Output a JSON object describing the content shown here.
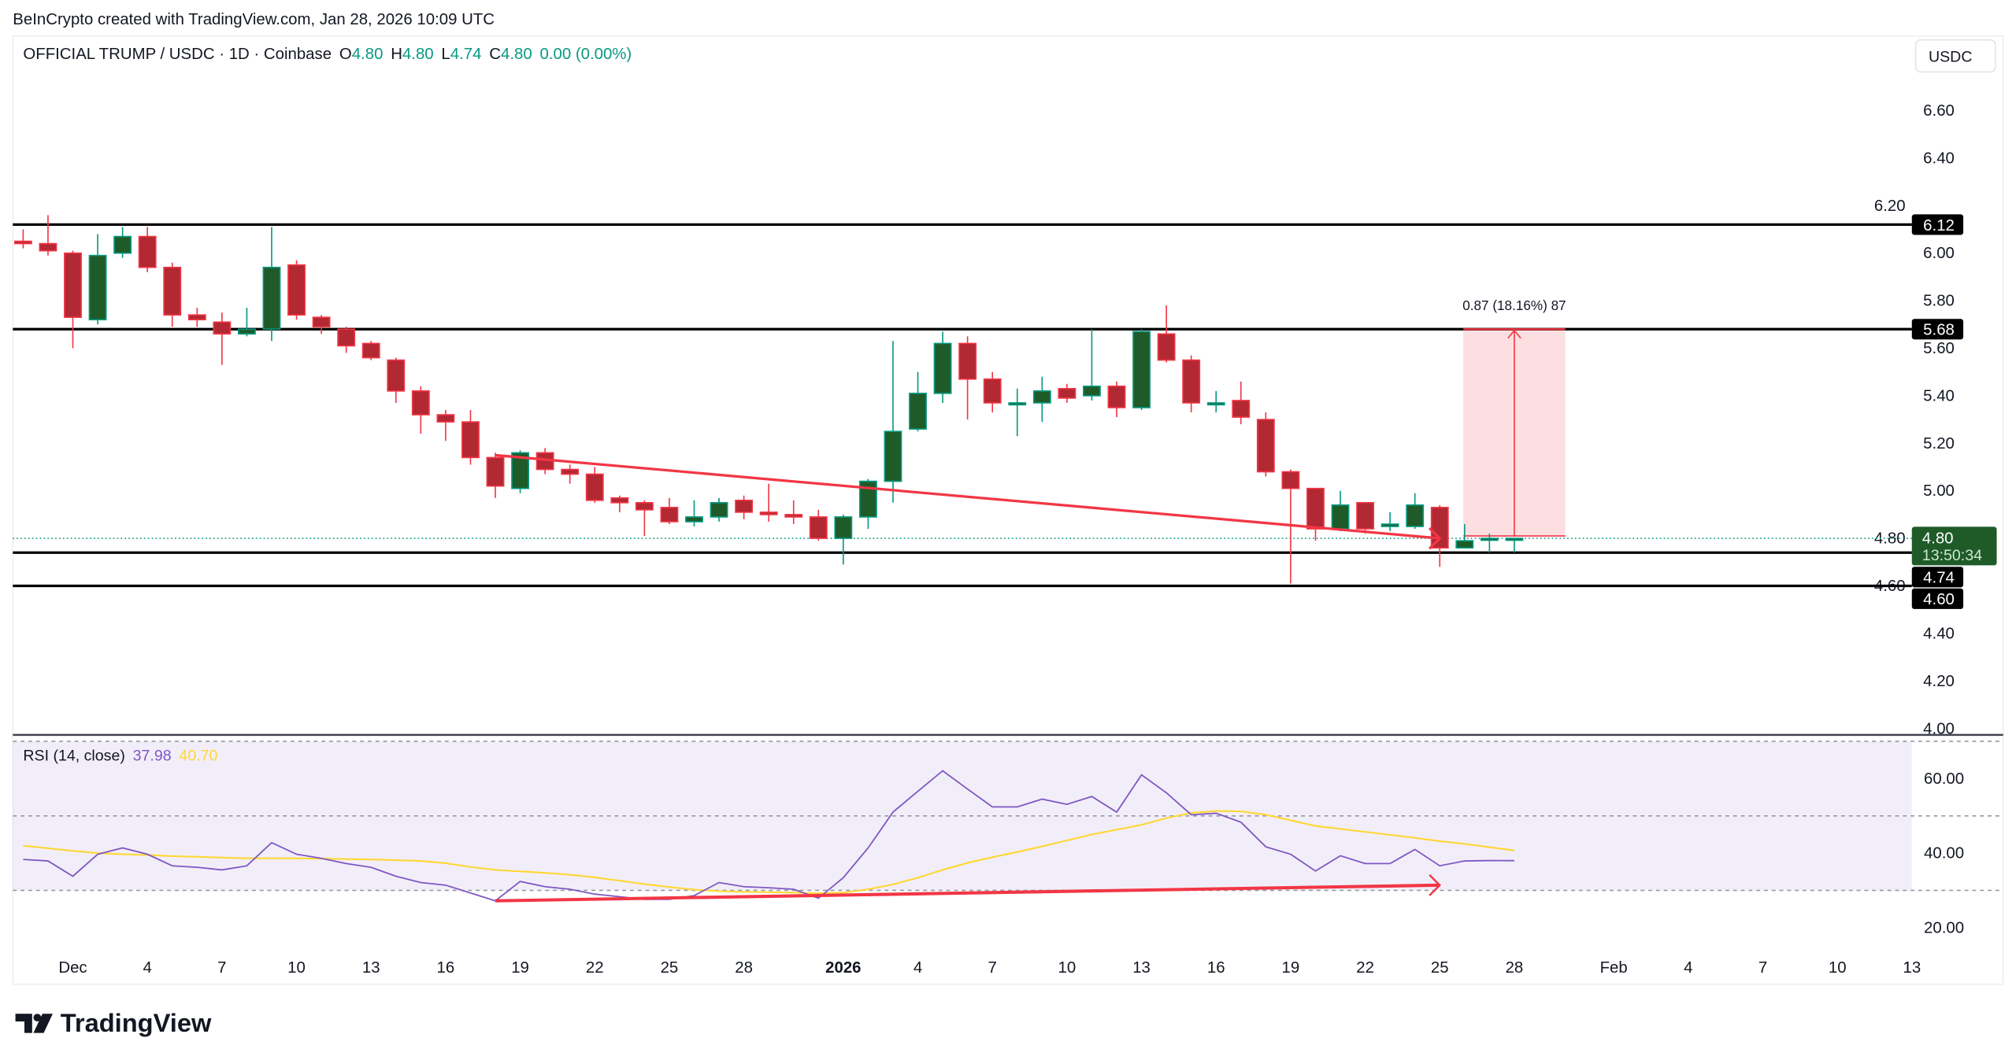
{
  "header": {
    "credit": "BeInCrypto created with TradingView.com, Jan 28, 2026 10:09 UTC",
    "symbol": "OFFICIAL TRUMP / USDC · 1D · Coinbase",
    "o_label": "O",
    "o_value": "4.80",
    "h_label": "H",
    "h_value": "4.80",
    "l_label": "L",
    "l_value": "4.74",
    "c_label": "C",
    "c_value": "4.80",
    "change": "0.00 (0.00%)",
    "currency_button": "USDC"
  },
  "colors": {
    "up": "#089981",
    "up_body": "#1e5b28",
    "down": "#f23645",
    "down_body": "#b22833",
    "rsi": "#7e57c2",
    "rsi_ma": "#fdd835",
    "accent_line": "#f23645"
  },
  "chart_data": {
    "type": "candlestick",
    "title": "OFFICIAL TRUMP / USDC · 1D · Coinbase",
    "start_date": "Nov 29, 2025",
    "ylim": [
      4.0,
      6.7
    ],
    "y_ticks": [
      "6.60",
      "6.40",
      "6.20",
      "6.00",
      "5.80",
      "5.60",
      "5.40",
      "5.20",
      "5.00",
      "4.80",
      "4.60",
      "4.40",
      "4.20",
      "4.00"
    ],
    "y_tick_values": [
      6.6,
      6.4,
      6.2,
      6.0,
      5.8,
      5.6,
      5.4,
      5.2,
      5.0,
      4.8,
      4.6,
      4.4,
      4.2,
      4.0
    ],
    "candles_ohlc": [
      [
        6.05,
        6.1,
        6.02,
        6.04
      ],
      [
        6.04,
        6.16,
        5.99,
        6.01
      ],
      [
        6.0,
        6.01,
        5.6,
        5.73
      ],
      [
        5.72,
        6.08,
        5.7,
        5.99
      ],
      [
        6.0,
        6.11,
        5.98,
        6.07
      ],
      [
        6.07,
        6.11,
        5.92,
        5.94
      ],
      [
        5.94,
        5.96,
        5.69,
        5.74
      ],
      [
        5.74,
        5.77,
        5.69,
        5.72
      ],
      [
        5.71,
        5.75,
        5.53,
        5.66
      ],
      [
        5.66,
        5.77,
        5.65,
        5.68
      ],
      [
        5.68,
        6.11,
        5.63,
        5.94
      ],
      [
        5.95,
        5.97,
        5.72,
        5.74
      ],
      [
        5.73,
        5.74,
        5.66,
        5.69
      ],
      [
        5.68,
        5.69,
        5.58,
        5.61
      ],
      [
        5.62,
        5.63,
        5.55,
        5.56
      ],
      [
        5.55,
        5.56,
        5.37,
        5.42
      ],
      [
        5.42,
        5.44,
        5.24,
        5.32
      ],
      [
        5.32,
        5.34,
        5.21,
        5.29
      ],
      [
        5.29,
        5.34,
        5.11,
        5.14
      ],
      [
        5.14,
        5.16,
        4.97,
        5.02
      ],
      [
        5.01,
        5.17,
        4.99,
        5.16
      ],
      [
        5.16,
        5.18,
        5.07,
        5.09
      ],
      [
        5.09,
        5.11,
        5.03,
        5.07
      ],
      [
        5.07,
        5.1,
        4.95,
        4.96
      ],
      [
        4.97,
        4.98,
        4.91,
        4.95
      ],
      [
        4.95,
        4.96,
        4.81,
        4.92
      ],
      [
        4.93,
        4.97,
        4.86,
        4.87
      ],
      [
        4.87,
        4.96,
        4.85,
        4.89
      ],
      [
        4.89,
        4.97,
        4.87,
        4.95
      ],
      [
        4.96,
        4.98,
        4.88,
        4.91
      ],
      [
        4.91,
        5.03,
        4.87,
        4.9
      ],
      [
        4.9,
        4.96,
        4.86,
        4.89
      ],
      [
        4.89,
        4.92,
        4.79,
        4.8
      ],
      [
        4.8,
        4.9,
        4.69,
        4.89
      ],
      [
        4.89,
        5.05,
        4.84,
        5.04
      ],
      [
        5.04,
        5.63,
        4.95,
        5.25
      ],
      [
        5.26,
        5.5,
        5.25,
        5.41
      ],
      [
        5.41,
        5.67,
        5.37,
        5.62
      ],
      [
        5.62,
        5.65,
        5.3,
        5.47
      ],
      [
        5.47,
        5.5,
        5.33,
        5.37
      ],
      [
        5.37,
        5.43,
        5.23,
        5.37
      ],
      [
        5.37,
        5.48,
        5.29,
        5.42
      ],
      [
        5.43,
        5.45,
        5.37,
        5.39
      ],
      [
        5.4,
        5.68,
        5.38,
        5.44
      ],
      [
        5.44,
        5.46,
        5.31,
        5.35
      ],
      [
        5.35,
        5.68,
        5.34,
        5.67
      ],
      [
        5.66,
        5.78,
        5.54,
        5.55
      ],
      [
        5.55,
        5.57,
        5.33,
        5.37
      ],
      [
        5.37,
        5.42,
        5.33,
        5.37
      ],
      [
        5.38,
        5.46,
        5.28,
        5.31
      ],
      [
        5.3,
        5.33,
        5.06,
        5.08
      ],
      [
        5.08,
        5.09,
        4.61,
        5.01
      ],
      [
        5.01,
        5.01,
        4.79,
        4.84
      ],
      [
        4.84,
        5.0,
        4.83,
        4.94
      ],
      [
        4.95,
        4.95,
        4.82,
        4.84
      ],
      [
        4.85,
        4.91,
        4.83,
        4.86
      ],
      [
        4.85,
        4.99,
        4.84,
        4.94
      ],
      [
        4.93,
        4.94,
        4.68,
        4.76
      ],
      [
        4.76,
        4.86,
        4.76,
        4.79
      ],
      [
        4.8,
        4.82,
        4.74,
        4.8
      ],
      [
        4.8,
        4.8,
        4.74,
        4.8
      ]
    ],
    "levels": [
      {
        "value": 6.12,
        "label": "6.12"
      },
      {
        "value": 5.68,
        "label": "5.68"
      },
      {
        "value": 4.74,
        "label": "4.74"
      },
      {
        "value": 4.6,
        "label": "4.60"
      }
    ],
    "last_price": {
      "value": 4.8,
      "label": "4.80",
      "countdown": "13:50:34"
    },
    "measurement": {
      "from": 4.81,
      "to": 5.68,
      "start_index": 58,
      "end_index": 62,
      "label": "0.87 (18.16%) 87"
    },
    "price_trendline": {
      "from_index": 19,
      "from_value": 5.15,
      "to_index": 57,
      "to_value": 4.8
    },
    "x_ticks": [
      {
        "label": "Dec",
        "i": 2
      },
      {
        "label": "4",
        "i": 5
      },
      {
        "label": "7",
        "i": 8
      },
      {
        "label": "10",
        "i": 11
      },
      {
        "label": "13",
        "i": 14
      },
      {
        "label": "16",
        "i": 17
      },
      {
        "label": "19",
        "i": 20
      },
      {
        "label": "22",
        "i": 23
      },
      {
        "label": "25",
        "i": 26
      },
      {
        "label": "28",
        "i": 29
      },
      {
        "label": "2026",
        "i": 33,
        "bold": true
      },
      {
        "label": "4",
        "i": 36
      },
      {
        "label": "7",
        "i": 39
      },
      {
        "label": "10",
        "i": 42
      },
      {
        "label": "13",
        "i": 45
      },
      {
        "label": "16",
        "i": 48
      },
      {
        "label": "19",
        "i": 51
      },
      {
        "label": "22",
        "i": 54
      },
      {
        "label": "25",
        "i": 57
      },
      {
        "label": "28",
        "i": 60
      },
      {
        "label": "Feb",
        "i": 64
      },
      {
        "label": "4",
        "i": 67
      },
      {
        "label": "7",
        "i": 70
      },
      {
        "label": "10",
        "i": 73
      },
      {
        "label": "13",
        "i": 76
      }
    ],
    "rsi": {
      "label": "RSI (14, close)",
      "value_label": "37.98",
      "ma_value_label": "40.70",
      "ylim": [
        10,
        75
      ],
      "bands": [
        70,
        50,
        30
      ],
      "y_ticks": [
        "60.00",
        "40.00",
        "20.00"
      ],
      "y_tick_values": [
        60,
        40,
        20
      ],
      "values": [
        38.3,
        37.9,
        33.8,
        39.7,
        41.4,
        39.7,
        36.6,
        36.2,
        35.5,
        36.6,
        42.8,
        39.7,
        38.6,
        37.2,
        36.2,
        33.8,
        32.1,
        31.4,
        29.3,
        27.2,
        32.4,
        31.0,
        30.3,
        29.0,
        28.3,
        27.6,
        27.6,
        28.6,
        32.1,
        31.0,
        30.7,
        30.3,
        27.9,
        33.4,
        41.4,
        51.0,
        56.6,
        62.1,
        57.2,
        52.4,
        52.4,
        54.5,
        53.1,
        55.2,
        51.0,
        61.0,
        56.2,
        50.3,
        50.7,
        48.3,
        41.7,
        39.7,
        35.2,
        39.3,
        37.2,
        37.2,
        41.0,
        36.6,
        37.9,
        38.0,
        37.98
      ],
      "ma": [
        42.0,
        41.3,
        40.6,
        40.0,
        39.7,
        39.5,
        39.2,
        39.0,
        38.8,
        38.6,
        38.6,
        38.6,
        38.5,
        38.4,
        38.3,
        38.1,
        37.9,
        37.3,
        36.3,
        35.5,
        35.1,
        34.7,
        34.2,
        33.5,
        32.6,
        31.7,
        30.9,
        30.2,
        29.8,
        29.6,
        29.5,
        29.4,
        29.2,
        29.4,
        30.3,
        31.6,
        33.4,
        35.5,
        37.4,
        38.9,
        40.3,
        41.8,
        43.4,
        45.0,
        46.3,
        47.6,
        49.4,
        50.8,
        51.3,
        51.2,
        50.3,
        48.8,
        47.3,
        46.5,
        45.7,
        44.9,
        44.1,
        43.2,
        42.5,
        41.6,
        40.7
      ],
      "trendline": {
        "from_index": 19,
        "from_value": 27.2,
        "to_index": 57,
        "to_value": 31.4
      }
    }
  },
  "footer": {
    "logo_text": "TradingView"
  }
}
